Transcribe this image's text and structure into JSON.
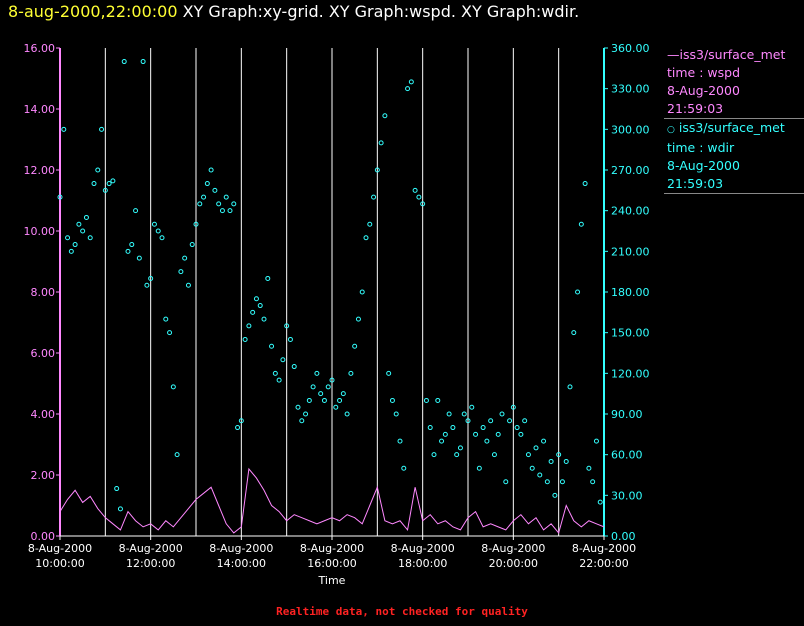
{
  "title": {
    "time": "8-aug-2000,22:00:00",
    "graphs": "XY Graph:xy-grid.  XY Graph:wspd.  XY Graph:wdir."
  },
  "legend": [
    {
      "series": "iss3/surface_met",
      "symbol": "line",
      "var": "time : wspd",
      "date": "8-Aug-2000",
      "time": "21:59:03",
      "color": "#ff88ff"
    },
    {
      "series": "iss3/surface_met",
      "symbol": "circle",
      "var": "time : wdir",
      "date": "8-Aug-2000",
      "time": "21:59:03",
      "color": "#33ffff"
    }
  ],
  "footer": "Realtime data, not checked for quality",
  "chart_data": {
    "type": "line",
    "xlabel": "Time",
    "x_ticks": [
      {
        "date": "8-Aug-2000",
        "time": "10:00:00"
      },
      {
        "date": "8-Aug-2000",
        "time": "12:00:00"
      },
      {
        "date": "8-Aug-2000",
        "time": "14:00:00"
      },
      {
        "date": "8-Aug-2000",
        "time": "16:00:00"
      },
      {
        "date": "8-Aug-2000",
        "time": "18:00:00"
      },
      {
        "date": "8-Aug-2000",
        "time": "20:00:00"
      },
      {
        "date": "8-Aug-2000",
        "time": "22:00:00"
      }
    ],
    "xlim": [
      "8-Aug-2000 10:00:00",
      "8-Aug-2000 22:00:00"
    ],
    "vertical_gridlines": [
      "11:00",
      "12:00",
      "13:00",
      "14:00",
      "15:00",
      "16:00",
      "17:00",
      "18:00",
      "19:00",
      "20:00",
      "21:00"
    ],
    "y_left": {
      "ylim": [
        0,
        16
      ],
      "ticks": [
        "0.00",
        "2.00",
        "4.00",
        "6.00",
        "8.00",
        "10.00",
        "12.00",
        "14.00",
        "16.00"
      ],
      "color": "#ff88ff"
    },
    "y_right": {
      "ylim": [
        0,
        360
      ],
      "ticks": [
        "0.00",
        "30.00",
        "60.00",
        "90.00",
        "120.00",
        "150.00",
        "180.00",
        "210.00",
        "240.00",
        "270.00",
        "300.00",
        "330.00",
        "360.00"
      ],
      "color": "#33ffff"
    },
    "series": [
      {
        "name": "iss3/surface_met time : wspd",
        "axis": "left",
        "style": "line",
        "color": "#ff88ff",
        "points": [
          [
            "10:00",
            0.8
          ],
          [
            "10:10",
            1.2
          ],
          [
            "10:20",
            1.5
          ],
          [
            "10:30",
            1.1
          ],
          [
            "10:40",
            1.3
          ],
          [
            "10:50",
            0.9
          ],
          [
            "11:00",
            0.6
          ],
          [
            "11:10",
            0.4
          ],
          [
            "11:20",
            0.2
          ],
          [
            "11:30",
            0.8
          ],
          [
            "11:40",
            0.5
          ],
          [
            "11:50",
            0.3
          ],
          [
            "12:00",
            0.4
          ],
          [
            "12:10",
            0.2
          ],
          [
            "12:20",
            0.5
          ],
          [
            "12:30",
            0.3
          ],
          [
            "12:40",
            0.6
          ],
          [
            "12:50",
            0.9
          ],
          [
            "13:00",
            1.2
          ],
          [
            "13:10",
            1.4
          ],
          [
            "13:20",
            1.6
          ],
          [
            "13:30",
            1.0
          ],
          [
            "13:40",
            0.4
          ],
          [
            "13:50",
            0.1
          ],
          [
            "14:00",
            0.3
          ],
          [
            "14:10",
            2.2
          ],
          [
            "14:20",
            1.9
          ],
          [
            "14:30",
            1.5
          ],
          [
            "14:40",
            1.0
          ],
          [
            "14:50",
            0.8
          ],
          [
            "15:00",
            0.5
          ],
          [
            "15:10",
            0.7
          ],
          [
            "15:20",
            0.6
          ],
          [
            "15:30",
            0.5
          ],
          [
            "15:40",
            0.4
          ],
          [
            "15:50",
            0.5
          ],
          [
            "16:00",
            0.6
          ],
          [
            "16:10",
            0.5
          ],
          [
            "16:20",
            0.7
          ],
          [
            "16:30",
            0.6
          ],
          [
            "16:40",
            0.4
          ],
          [
            "16:50",
            1.0
          ],
          [
            "17:00",
            1.6
          ],
          [
            "17:10",
            0.5
          ],
          [
            "17:20",
            0.4
          ],
          [
            "17:30",
            0.5
          ],
          [
            "17:40",
            0.2
          ],
          [
            "17:50",
            1.6
          ],
          [
            "18:00",
            0.5
          ],
          [
            "18:10",
            0.7
          ],
          [
            "18:20",
            0.4
          ],
          [
            "18:30",
            0.5
          ],
          [
            "18:40",
            0.3
          ],
          [
            "18:50",
            0.2
          ],
          [
            "19:00",
            0.6
          ],
          [
            "19:10",
            0.8
          ],
          [
            "19:20",
            0.3
          ],
          [
            "19:30",
            0.4
          ],
          [
            "19:40",
            0.3
          ],
          [
            "19:50",
            0.2
          ],
          [
            "20:00",
            0.5
          ],
          [
            "20:10",
            0.7
          ],
          [
            "20:20",
            0.4
          ],
          [
            "20:30",
            0.6
          ],
          [
            "20:40",
            0.2
          ],
          [
            "20:50",
            0.4
          ],
          [
            "21:00",
            0.1
          ],
          [
            "21:10",
            1.0
          ],
          [
            "21:20",
            0.5
          ],
          [
            "21:30",
            0.3
          ],
          [
            "21:40",
            0.5
          ],
          [
            "21:50",
            0.4
          ],
          [
            "22:00",
            0.3
          ]
        ]
      },
      {
        "name": "iss3/surface_met time : wdir",
        "axis": "right",
        "style": "circle",
        "color": "#33ffff",
        "points": [
          [
            "10:00",
            250
          ],
          [
            "10:05",
            300
          ],
          [
            "10:10",
            220
          ],
          [
            "10:15",
            210
          ],
          [
            "10:20",
            215
          ],
          [
            "10:25",
            230
          ],
          [
            "10:30",
            225
          ],
          [
            "10:35",
            235
          ],
          [
            "10:40",
            220
          ],
          [
            "10:45",
            260
          ],
          [
            "10:50",
            270
          ],
          [
            "10:55",
            300
          ],
          [
            "11:00",
            255
          ],
          [
            "11:05",
            260
          ],
          [
            "11:10",
            262
          ],
          [
            "11:15",
            35
          ],
          [
            "11:20",
            20
          ],
          [
            "11:25",
            350
          ],
          [
            "11:30",
            210
          ],
          [
            "11:35",
            215
          ],
          [
            "11:40",
            240
          ],
          [
            "11:45",
            205
          ],
          [
            "11:50",
            350
          ],
          [
            "11:55",
            185
          ],
          [
            "12:00",
            190
          ],
          [
            "12:05",
            230
          ],
          [
            "12:10",
            225
          ],
          [
            "12:15",
            220
          ],
          [
            "12:20",
            160
          ],
          [
            "12:25",
            150
          ],
          [
            "12:30",
            110
          ],
          [
            "12:35",
            60
          ],
          [
            "12:40",
            195
          ],
          [
            "12:45",
            205
          ],
          [
            "12:50",
            185
          ],
          [
            "12:55",
            215
          ],
          [
            "13:00",
            230
          ],
          [
            "13:05",
            245
          ],
          [
            "13:10",
            250
          ],
          [
            "13:15",
            260
          ],
          [
            "13:20",
            270
          ],
          [
            "13:25",
            255
          ],
          [
            "13:30",
            245
          ],
          [
            "13:35",
            240
          ],
          [
            "13:40",
            250
          ],
          [
            "13:45",
            240
          ],
          [
            "13:50",
            245
          ],
          [
            "13:55",
            80
          ],
          [
            "14:00",
            85
          ],
          [
            "14:05",
            145
          ],
          [
            "14:10",
            155
          ],
          [
            "14:15",
            165
          ],
          [
            "14:20",
            175
          ],
          [
            "14:25",
            170
          ],
          [
            "14:30",
            160
          ],
          [
            "14:35",
            190
          ],
          [
            "14:40",
            140
          ],
          [
            "14:45",
            120
          ],
          [
            "14:50",
            115
          ],
          [
            "14:55",
            130
          ],
          [
            "15:00",
            155
          ],
          [
            "15:05",
            145
          ],
          [
            "15:10",
            125
          ],
          [
            "15:15",
            95
          ],
          [
            "15:20",
            85
          ],
          [
            "15:25",
            90
          ],
          [
            "15:30",
            100
          ],
          [
            "15:35",
            110
          ],
          [
            "15:40",
            120
          ],
          [
            "15:45",
            105
          ],
          [
            "15:50",
            100
          ],
          [
            "15:55",
            110
          ],
          [
            "16:00",
            115
          ],
          [
            "16:05",
            95
          ],
          [
            "16:10",
            100
          ],
          [
            "16:15",
            105
          ],
          [
            "16:20",
            90
          ],
          [
            "16:25",
            120
          ],
          [
            "16:30",
            140
          ],
          [
            "16:35",
            160
          ],
          [
            "16:40",
            180
          ],
          [
            "16:45",
            220
          ],
          [
            "16:50",
            230
          ],
          [
            "16:55",
            250
          ],
          [
            "17:00",
            270
          ],
          [
            "17:05",
            290
          ],
          [
            "17:10",
            310
          ],
          [
            "17:15",
            120
          ],
          [
            "17:20",
            100
          ],
          [
            "17:25",
            90
          ],
          [
            "17:30",
            70
          ],
          [
            "17:35",
            50
          ],
          [
            "17:40",
            330
          ],
          [
            "17:45",
            335
          ],
          [
            "17:50",
            255
          ],
          [
            "17:55",
            250
          ],
          [
            "18:00",
            245
          ],
          [
            "18:05",
            100
          ],
          [
            "18:10",
            80
          ],
          [
            "18:15",
            60
          ],
          [
            "18:20",
            100
          ],
          [
            "18:25",
            70
          ],
          [
            "18:30",
            75
          ],
          [
            "18:35",
            90
          ],
          [
            "18:40",
            80
          ],
          [
            "18:45",
            60
          ],
          [
            "18:50",
            65
          ],
          [
            "18:55",
            90
          ],
          [
            "19:00",
            85
          ],
          [
            "19:05",
            95
          ],
          [
            "19:10",
            75
          ],
          [
            "19:15",
            50
          ],
          [
            "19:20",
            80
          ],
          [
            "19:25",
            70
          ],
          [
            "19:30",
            85
          ],
          [
            "19:35",
            60
          ],
          [
            "19:40",
            75
          ],
          [
            "19:45",
            90
          ],
          [
            "19:50",
            40
          ],
          [
            "19:55",
            85
          ],
          [
            "20:00",
            95
          ],
          [
            "20:05",
            80
          ],
          [
            "20:10",
            75
          ],
          [
            "20:15",
            85
          ],
          [
            "20:20",
            60
          ],
          [
            "20:25",
            50
          ],
          [
            "20:30",
            65
          ],
          [
            "20:35",
            45
          ],
          [
            "20:40",
            70
          ],
          [
            "20:45",
            40
          ],
          [
            "20:50",
            55
          ],
          [
            "20:55",
            30
          ],
          [
            "21:00",
            60
          ],
          [
            "21:05",
            40
          ],
          [
            "21:10",
            55
          ],
          [
            "21:15",
            110
          ],
          [
            "21:20",
            150
          ],
          [
            "21:25",
            180
          ],
          [
            "21:30",
            230
          ],
          [
            "21:35",
            260
          ],
          [
            "21:40",
            50
          ],
          [
            "21:45",
            40
          ],
          [
            "21:50",
            70
          ],
          [
            "21:55",
            25
          ]
        ]
      }
    ]
  }
}
